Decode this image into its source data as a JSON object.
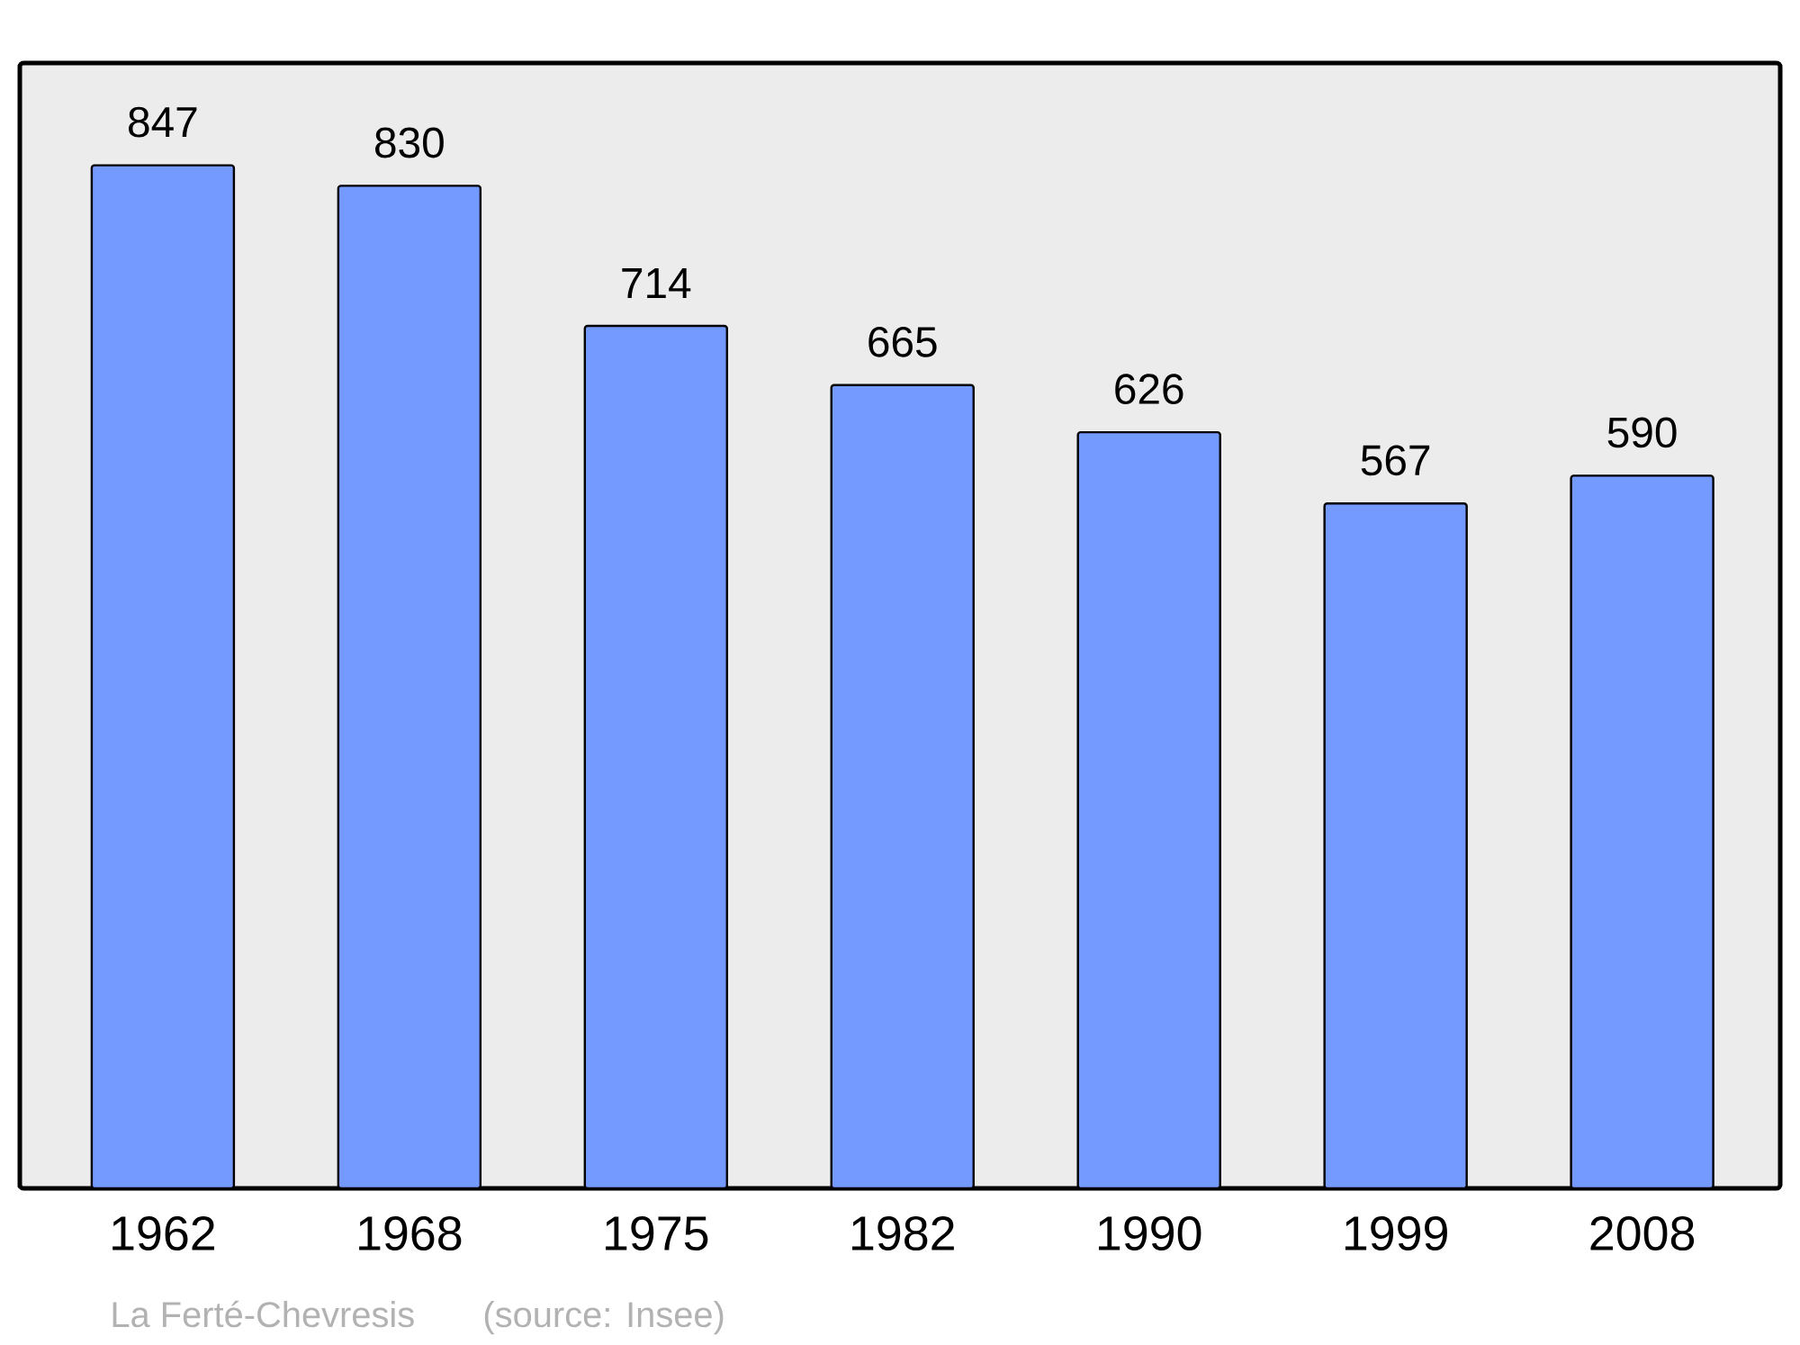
{
  "chart_data": {
    "type": "bar",
    "categories": [
      "1962",
      "1968",
      "1975",
      "1982",
      "1990",
      "1999",
      "2008"
    ],
    "values": [
      847,
      830,
      714,
      665,
      626,
      567,
      590
    ],
    "color": "#7499ff",
    "data_labels": true,
    "annotations": [
      "La Ferté-Chevresis",
      "(source: Insee)"
    ]
  }
}
